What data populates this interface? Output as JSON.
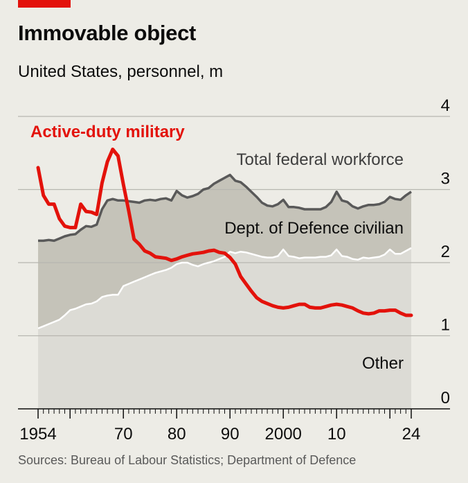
{
  "header": {
    "title": "Immovable object",
    "subtitle": "United States, personnel, m"
  },
  "footer": {
    "source": "Sources: Bureau of Labour Statistics; Department of Defence"
  },
  "colors": {
    "accent": "#e3120b",
    "military_line": "#e3120b",
    "total_fill": "#c5c3b9",
    "total_line": "#595959",
    "dod_fill": "#dcdbd5",
    "other_fill": "#edece6",
    "other_line": "#ffffff",
    "background": "#edece6"
  },
  "chart_data": {
    "type": "area",
    "title": "Immovable object",
    "subtitle": "United States, personnel, m",
    "xlim": [
      1953,
      2024
    ],
    "ylim": [
      0,
      4
    ],
    "y_ticks": [
      0,
      1,
      2,
      3,
      4
    ],
    "y_tick_labels": [
      "0",
      "1",
      "2",
      "3",
      "4"
    ],
    "x_ticks": [
      1954,
      1970,
      1980,
      1990,
      2000,
      2010,
      2024
    ],
    "x_tick_labels": [
      "1954",
      "70",
      "80",
      "90",
      "2000",
      "10",
      "24"
    ],
    "grid": true,
    "x": [
      1954,
      1955,
      1956,
      1957,
      1958,
      1959,
      1960,
      1961,
      1962,
      1963,
      1964,
      1965,
      1966,
      1967,
      1968,
      1969,
      1970,
      1971,
      1972,
      1973,
      1974,
      1975,
      1976,
      1977,
      1978,
      1979,
      1980,
      1981,
      1982,
      1983,
      1984,
      1985,
      1986,
      1987,
      1988,
      1989,
      1990,
      1991,
      1992,
      1993,
      1994,
      1995,
      1996,
      1997,
      1998,
      1999,
      2000,
      2001,
      2002,
      2003,
      2004,
      2005,
      2006,
      2007,
      2008,
      2009,
      2010,
      2011,
      2012,
      2013,
      2014,
      2015,
      2016,
      2017,
      2018,
      2019,
      2020,
      2021,
      2022,
      2023,
      2024
    ],
    "series": [
      {
        "name": "Total federal workforce",
        "values": [
          2.3,
          2.3,
          2.31,
          2.3,
          2.33,
          2.36,
          2.38,
          2.39,
          2.45,
          2.5,
          2.49,
          2.52,
          2.73,
          2.85,
          2.87,
          2.85,
          2.85,
          2.84,
          2.83,
          2.82,
          2.85,
          2.86,
          2.85,
          2.87,
          2.88,
          2.85,
          2.98,
          2.92,
          2.89,
          2.91,
          2.94,
          3.0,
          3.02,
          3.08,
          3.12,
          3.16,
          3.2,
          3.12,
          3.1,
          3.04,
          2.97,
          2.9,
          2.82,
          2.78,
          2.77,
          2.8,
          2.86,
          2.76,
          2.76,
          2.75,
          2.73,
          2.73,
          2.73,
          2.73,
          2.76,
          2.83,
          2.97,
          2.85,
          2.83,
          2.77,
          2.74,
          2.77,
          2.79,
          2.79,
          2.8,
          2.83,
          2.9,
          2.87,
          2.86,
          2.92,
          2.97
        ]
      },
      {
        "name": "Dept. of Defence civilian",
        "values": [
          1.1,
          1.13,
          1.16,
          1.19,
          1.22,
          1.28,
          1.35,
          1.37,
          1.4,
          1.43,
          1.44,
          1.47,
          1.53,
          1.55,
          1.56,
          1.56,
          1.68,
          1.71,
          1.74,
          1.77,
          1.8,
          1.83,
          1.86,
          1.88,
          1.9,
          1.93,
          1.98,
          2.0,
          2.0,
          1.97,
          1.95,
          1.98,
          2.0,
          2.02,
          2.05,
          2.08,
          2.15,
          2.13,
          2.15,
          2.14,
          2.12,
          2.1,
          2.08,
          2.07,
          2.07,
          2.09,
          2.18,
          2.09,
          2.08,
          2.06,
          2.07,
          2.07,
          2.07,
          2.08,
          2.08,
          2.1,
          2.18,
          2.09,
          2.08,
          2.05,
          2.04,
          2.07,
          2.06,
          2.07,
          2.08,
          2.11,
          2.18,
          2.12,
          2.12,
          2.16,
          2.2
        ]
      },
      {
        "name": "Other",
        "values": [
          1.1,
          1.13,
          1.16,
          1.19,
          1.22,
          1.28,
          1.35,
          1.37,
          1.4,
          1.43,
          1.44,
          1.47,
          1.53,
          1.55,
          1.56,
          1.56,
          1.68,
          1.71,
          1.74,
          1.77,
          1.8,
          1.83,
          1.86,
          1.88,
          1.9,
          1.93,
          1.98,
          2.0,
          2.0,
          1.97,
          1.95,
          1.98,
          2.0,
          2.02,
          2.05,
          2.08,
          2.15,
          2.13,
          2.15,
          2.14,
          2.12,
          2.1,
          2.08,
          2.07,
          2.07,
          2.09,
          2.18,
          2.09,
          2.08,
          2.06,
          2.07,
          2.07,
          2.07,
          2.08,
          2.08,
          2.1,
          2.18,
          2.09,
          2.08,
          2.05,
          2.04,
          2.07,
          2.06,
          2.07,
          2.08,
          2.11,
          2.18,
          2.12,
          2.12,
          2.16,
          2.2
        ]
      },
      {
        "name": "Active-duty military",
        "values": [
          3.3,
          2.92,
          2.8,
          2.8,
          2.6,
          2.5,
          2.48,
          2.48,
          2.8,
          2.7,
          2.69,
          2.66,
          3.09,
          3.38,
          3.55,
          3.46,
          3.07,
          2.71,
          2.32,
          2.25,
          2.16,
          2.13,
          2.08,
          2.07,
          2.06,
          2.03,
          2.05,
          2.08,
          2.1,
          2.12,
          2.13,
          2.14,
          2.16,
          2.17,
          2.14,
          2.13,
          2.07,
          1.98,
          1.81,
          1.71,
          1.61,
          1.52,
          1.47,
          1.44,
          1.41,
          1.39,
          1.38,
          1.39,
          1.41,
          1.43,
          1.43,
          1.39,
          1.38,
          1.38,
          1.4,
          1.42,
          1.43,
          1.42,
          1.4,
          1.38,
          1.34,
          1.31,
          1.3,
          1.31,
          1.34,
          1.34,
          1.35,
          1.35,
          1.31,
          1.28,
          1.28
        ]
      }
    ]
  },
  "labels": {
    "military": "Active-duty military",
    "total": "Total federal workforce",
    "dod": "Dept. of Defence civilian",
    "other": "Other"
  }
}
